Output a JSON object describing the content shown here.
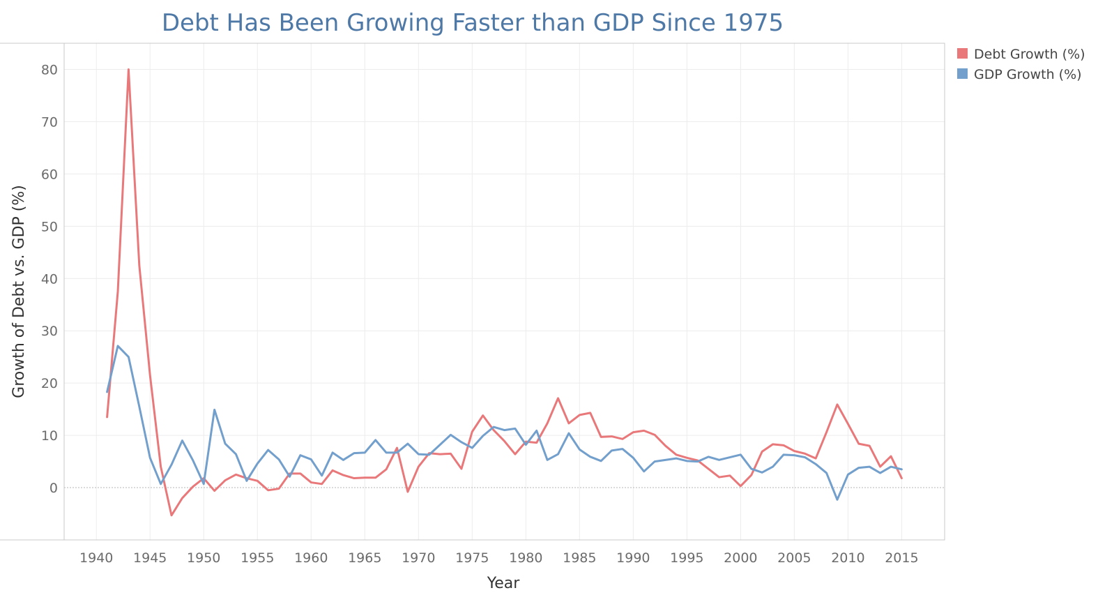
{
  "chart_data": {
    "type": "line",
    "title": "Debt Has Been Growing Faster than GDP Since 1975",
    "xlabel": "Year",
    "ylabel": "Growth of Debt vs. GDP (%)",
    "xlim": [
      1937,
      2019
    ],
    "ylim": [
      -10,
      85
    ],
    "x_ticks": [
      1940,
      1945,
      1950,
      1955,
      1960,
      1965,
      1970,
      1975,
      1980,
      1985,
      1990,
      1995,
      2000,
      2005,
      2010,
      2015
    ],
    "y_ticks": [
      0,
      10,
      20,
      30,
      40,
      50,
      60,
      70,
      80
    ],
    "grid": true,
    "legend_position": "top-right",
    "x": [
      1941,
      1942,
      1943,
      1944,
      1945,
      1946,
      1947,
      1948,
      1949,
      1950,
      1951,
      1952,
      1953,
      1954,
      1955,
      1956,
      1957,
      1958,
      1959,
      1960,
      1961,
      1962,
      1963,
      1964,
      1965,
      1966,
      1967,
      1968,
      1969,
      1970,
      1971,
      1972,
      1973,
      1974,
      1975,
      1976,
      1977,
      1978,
      1979,
      1980,
      1981,
      1982,
      1983,
      1984,
      1985,
      1986,
      1987,
      1988,
      1989,
      1990,
      1991,
      1992,
      1993,
      1994,
      1995,
      1996,
      1997,
      1998,
      1999,
      2000,
      2001,
      2002,
      2003,
      2004,
      2005,
      2006,
      2007,
      2008,
      2009,
      2010,
      2011,
      2012,
      2013,
      2014,
      2015
    ],
    "series": [
      {
        "name": "Debt Growth (%)",
        "color": "#e8787a",
        "values": [
          13.5,
          37.5,
          80.0,
          42.5,
          21.5,
          4.0,
          -5.3,
          -2.0,
          0.2,
          1.8,
          -0.6,
          1.4,
          2.5,
          1.8,
          1.3,
          -0.5,
          -0.2,
          2.7,
          2.7,
          1.0,
          0.7,
          3.3,
          2.4,
          1.8,
          1.9,
          1.9,
          3.5,
          7.6,
          -0.8,
          4.0,
          6.6,
          6.4,
          6.5,
          3.6,
          10.7,
          13.8,
          11.0,
          8.9,
          6.4,
          8.8,
          8.6,
          12.3,
          17.1,
          12.3,
          13.9,
          14.3,
          9.7,
          9.8,
          9.3,
          10.6,
          10.9,
          10.1,
          8.0,
          6.3,
          5.7,
          5.2,
          3.6,
          2.0,
          2.3,
          0.3,
          2.4,
          6.9,
          8.3,
          8.1,
          7.0,
          6.5,
          5.6,
          10.6,
          15.9,
          12.2,
          8.4,
          8.0,
          4.0,
          6.0,
          1.8
        ]
      },
      {
        "name": "GDP Growth (%)",
        "color": "#729fcb",
        "values": [
          18.3,
          27.1,
          25.0,
          15.5,
          5.7,
          0.7,
          4.4,
          9.0,
          5.2,
          0.7,
          14.9,
          8.4,
          6.4,
          1.3,
          4.6,
          7.2,
          5.4,
          2.1,
          6.2,
          5.4,
          2.3,
          6.7,
          5.3,
          6.6,
          6.7,
          9.1,
          6.7,
          6.7,
          8.4,
          6.4,
          6.3,
          8.2,
          10.1,
          8.7,
          7.6,
          9.9,
          11.6,
          11.0,
          11.3,
          8.2,
          10.9,
          5.3,
          6.4,
          10.4,
          7.3,
          5.9,
          5.1,
          7.1,
          7.4,
          5.7,
          3.1,
          5.0,
          5.3,
          5.6,
          5.1,
          5.0,
          5.9,
          5.3,
          5.8,
          6.3,
          3.6,
          2.9,
          4.0,
          6.3,
          6.2,
          5.8,
          4.5,
          2.8,
          -2.3,
          2.5,
          3.8,
          4.0,
          2.8,
          4.0,
          3.5
        ]
      }
    ]
  }
}
